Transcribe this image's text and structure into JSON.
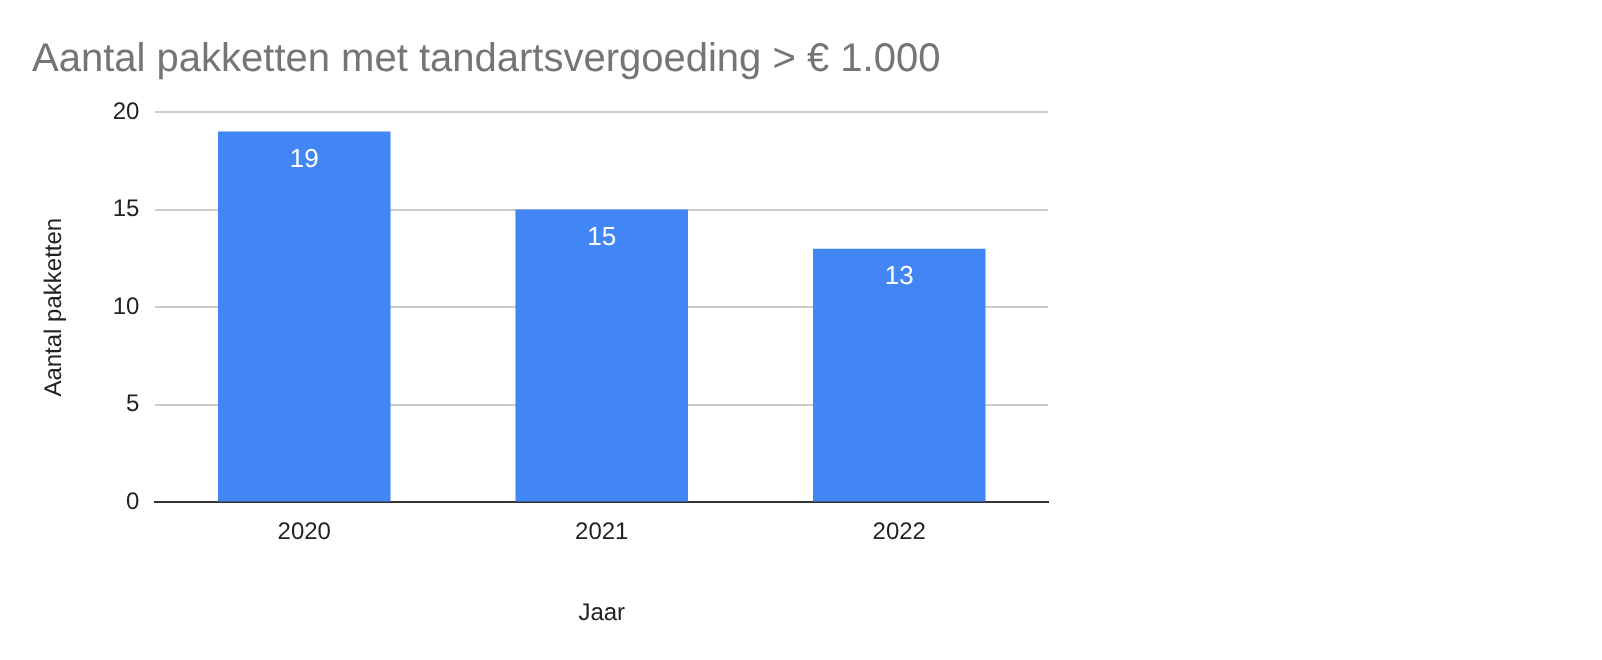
{
  "chart_data": {
    "type": "bar",
    "title": "Aantal pakketten met tandartsvergoeding > € 1.000",
    "xlabel": "Jaar",
    "ylabel": "Aantal pakketten",
    "categories": [
      "2020",
      "2021",
      "2022"
    ],
    "values": [
      19,
      15,
      13
    ],
    "color": "#4285f4",
    "ylim": [
      0,
      20
    ],
    "yticks": [
      0,
      5,
      10,
      15,
      20
    ],
    "grid": "y",
    "legend": false,
    "data_labels": true
  }
}
